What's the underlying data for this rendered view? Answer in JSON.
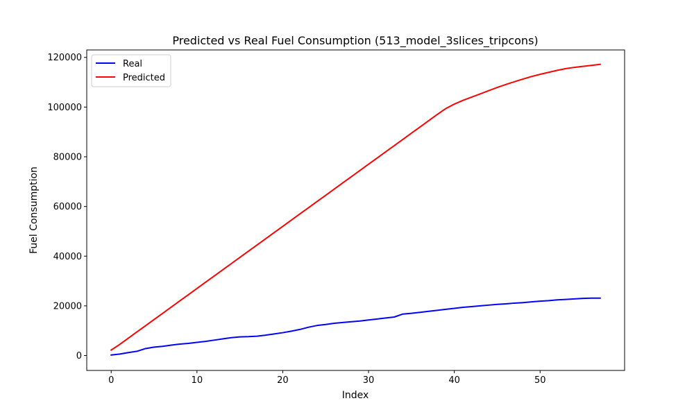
{
  "chart_data": {
    "type": "line",
    "title": "Predicted vs Real Fuel Consumption (513_model_3slices_tripcons)",
    "xlabel": "Index",
    "ylabel": "Fuel Consumption",
    "xlim": [
      -2.85,
      59.85
    ],
    "ylim": [
      -6000,
      123000
    ],
    "xticks": [
      0,
      10,
      20,
      30,
      40,
      50
    ],
    "yticks": [
      0,
      20000,
      40000,
      60000,
      80000,
      100000,
      120000
    ],
    "grid": false,
    "legend_position": "top-left",
    "series": [
      {
        "name": "Real",
        "color": "#0000ff",
        "x": [
          0,
          1,
          2,
          3,
          4,
          5,
          6,
          7,
          8,
          9,
          10,
          11,
          12,
          13,
          14,
          15,
          16,
          17,
          18,
          19,
          20,
          21,
          22,
          23,
          24,
          25,
          26,
          27,
          28,
          29,
          30,
          31,
          32,
          33,
          34,
          35,
          36,
          37,
          38,
          39,
          40,
          41,
          42,
          43,
          44,
          45,
          46,
          47,
          48,
          49,
          50,
          51,
          52,
          53,
          54,
          55,
          56,
          57
        ],
        "y": [
          200,
          600,
          1200,
          1700,
          2800,
          3400,
          3700,
          4200,
          4600,
          4900,
          5300,
          5700,
          6200,
          6700,
          7200,
          7500,
          7600,
          7800,
          8200,
          8700,
          9200,
          9800,
          10500,
          11400,
          12100,
          12500,
          13000,
          13300,
          13600,
          13900,
          14300,
          14700,
          15100,
          15500,
          16700,
          17000,
          17400,
          17800,
          18200,
          18600,
          19000,
          19400,
          19700,
          20000,
          20300,
          20600,
          20800,
          21100,
          21300,
          21600,
          21900,
          22100,
          22400,
          22600,
          22800,
          23000,
          23100,
          23100
        ]
      },
      {
        "name": "Predicted",
        "color": "#ff0000",
        "x": [
          0,
          1,
          2,
          3,
          4,
          5,
          6,
          7,
          8,
          9,
          10,
          11,
          12,
          13,
          14,
          15,
          16,
          17,
          18,
          19,
          20,
          21,
          22,
          23,
          24,
          25,
          26,
          27,
          28,
          29,
          30,
          31,
          32,
          33,
          34,
          35,
          36,
          37,
          38,
          39,
          40,
          41,
          42,
          43,
          44,
          45,
          46,
          47,
          48,
          49,
          50,
          51,
          52,
          53,
          54,
          55,
          56,
          57
        ],
        "y": [
          2200,
          4500,
          7000,
          9500,
          12000,
          14500,
          17000,
          19500,
          22000,
          24500,
          27000,
          29500,
          32000,
          34500,
          37000,
          39500,
          42000,
          44500,
          47000,
          49500,
          52000,
          54500,
          57000,
          59500,
          62000,
          64500,
          67000,
          69500,
          72000,
          74500,
          77000,
          79500,
          82000,
          84500,
          87000,
          89500,
          92000,
          94500,
          97000,
          99400,
          101200,
          102700,
          104000,
          105300,
          106600,
          107900,
          109100,
          110200,
          111300,
          112300,
          113200,
          114000,
          114800,
          115500,
          116000,
          116400,
          116800,
          117200
        ]
      }
    ]
  }
}
